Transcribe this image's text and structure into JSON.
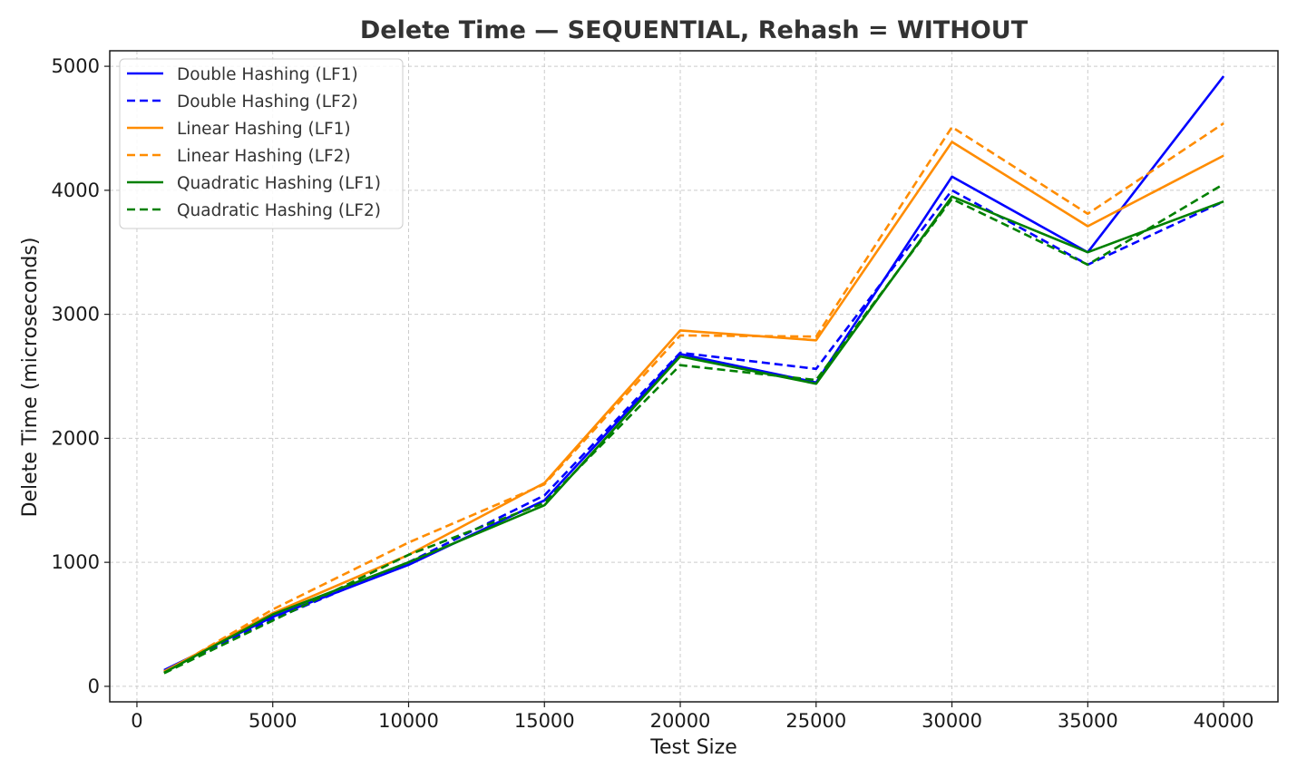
{
  "chart_data": {
    "type": "line",
    "title": "Delete Time — SEQUENTIAL, Rehash = WITHOUT",
    "xlabel": "Test Size",
    "ylabel": "Delete Time (microseconds)",
    "x": [
      1000,
      5000,
      10000,
      15000,
      20000,
      25000,
      30000,
      35000,
      40000
    ],
    "xlim": [
      -1000,
      42000
    ],
    "ylim": [
      -125,
      5125
    ],
    "xticks": [
      0,
      5000,
      10000,
      15000,
      20000,
      25000,
      30000,
      35000,
      40000
    ],
    "yticks": [
      0,
      1000,
      2000,
      3000,
      4000,
      5000
    ],
    "grid": true,
    "legend_position": "top-left",
    "series": [
      {
        "name": "Double Hashing (LF1)",
        "color": "#0000ff",
        "dash": "solid",
        "values": [
          130,
          560,
          980,
          1500,
          2680,
          2450,
          4110,
          3500,
          4920
        ]
      },
      {
        "name": "Double Hashing (LF2)",
        "color": "#0000ff",
        "dash": "dashed",
        "values": [
          120,
          540,
          1000,
          1540,
          2690,
          2560,
          4000,
          3400,
          3910
        ]
      },
      {
        "name": "Linear Hashing (LF1)",
        "color": "#ff8c00",
        "dash": "solid",
        "values": [
          120,
          590,
          1060,
          1640,
          2870,
          2790,
          4390,
          3710,
          4280
        ]
      },
      {
        "name": "Linear Hashing (LF2)",
        "color": "#ff8c00",
        "dash": "dashed",
        "values": [
          110,
          620,
          1160,
          1630,
          2830,
          2820,
          4510,
          3810,
          4540
        ]
      },
      {
        "name": "Quadratic Hashing (LF1)",
        "color": "#008000",
        "dash": "solid",
        "values": [
          110,
          580,
          1000,
          1460,
          2660,
          2440,
          3950,
          3500,
          3910
        ]
      },
      {
        "name": "Quadratic Hashing (LF2)",
        "color": "#008000",
        "dash": "dashed",
        "values": [
          105,
          530,
          1060,
          1480,
          2590,
          2470,
          3930,
          3400,
          4050
        ]
      }
    ]
  }
}
